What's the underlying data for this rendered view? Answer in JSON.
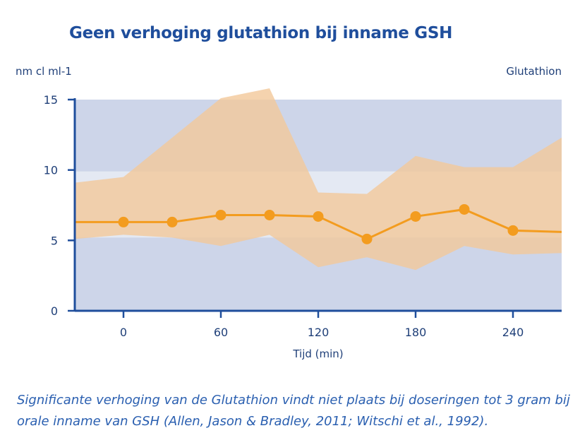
{
  "chart_data": {
    "type": "line",
    "title": "Geen verhoging glutathion bij inname GSH",
    "ylabel": "nm cl ml-1",
    "xlabel": "Tijd (min)",
    "series_label": "Glutathion",
    "xlim": [
      -30,
      270
    ],
    "ylim": [
      0,
      15
    ],
    "x_ticks": [
      0,
      60,
      120,
      180,
      240
    ],
    "y_ticks": [
      0,
      5,
      10,
      15
    ],
    "reference_band": [
      5.2,
      9.9
    ],
    "series": [
      {
        "name": "Glutathion",
        "x": [
          -30,
          0,
          30,
          60,
          90,
          120,
          150,
          180,
          210,
          240,
          270
        ],
        "y": [
          6.3,
          6.3,
          6.3,
          6.8,
          6.8,
          6.7,
          5.1,
          6.7,
          7.2,
          5.7,
          5.6
        ],
        "markers_x": [
          0,
          30,
          60,
          90,
          120,
          150,
          180,
          210,
          240
        ],
        "upper": [
          9.1,
          9.5,
          12.3,
          15.1,
          15.8,
          8.4,
          8.3,
          11.0,
          10.2,
          10.2,
          12.3
        ],
        "lower": [
          5.1,
          5.4,
          5.2,
          4.6,
          5.4,
          3.1,
          3.8,
          2.9,
          4.6,
          4.0,
          4.1
        ]
      }
    ],
    "colors": {
      "background_band": "#cdd5e9",
      "reference_band": "#e4e9f3",
      "range_fill": "#f2c89a",
      "line": "#f39c1f",
      "axis": "#1f4e9c"
    }
  },
  "caption": "Significante verhoging van de Glutathion vindt niet plaats bij doseringen tot 3 gram bij orale inname van GSH (Allen, Jason & Bradley, 2011; Witschi et al., 1992)."
}
